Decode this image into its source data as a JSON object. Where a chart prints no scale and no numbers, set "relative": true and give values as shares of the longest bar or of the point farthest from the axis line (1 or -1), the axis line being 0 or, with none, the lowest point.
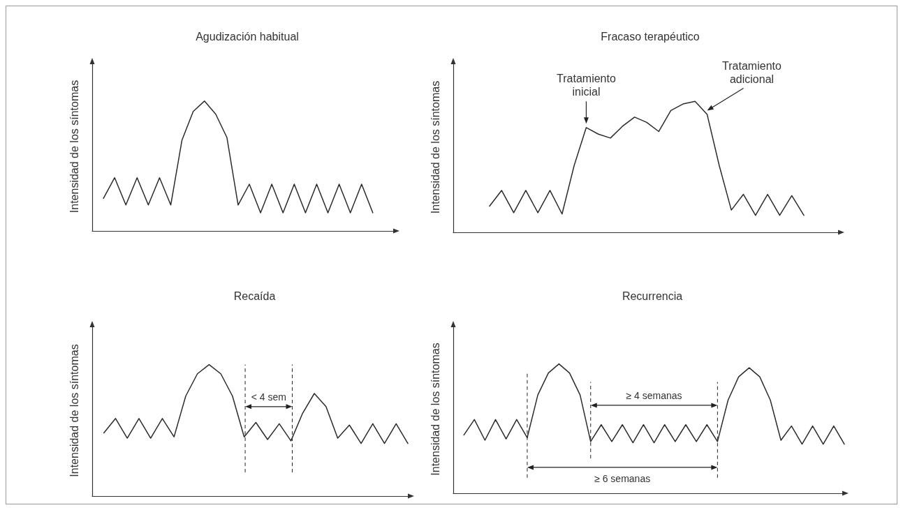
{
  "chart_data": [
    {
      "type": "line",
      "title": "Agudización habitual",
      "ylabel": "Intensidad de los síntomas",
      "relative": true,
      "marker": "none",
      "categories": [
        null,
        null,
        null,
        null,
        null,
        null,
        null,
        null,
        null,
        null,
        null,
        null,
        null,
        null,
        null,
        null,
        null,
        null,
        null,
        null,
        null,
        null,
        null,
        null,
        null,
        null,
        null,
        null
      ],
      "series": [
        {
          "color": "#2b2b2b",
          "values": [
            null,
            0.25,
            0.41,
            0.2,
            0.41,
            0.2,
            0.41,
            0.2,
            0.7,
            0.92,
            1,
            0.9,
            0.72,
            0.2,
            0.36,
            0.14,
            0.36,
            0.14,
            0.36,
            0.14,
            0.36,
            0.14,
            0.36,
            0.14,
            0.36,
            0.14,
            null,
            null
          ]
        }
      ]
    },
    {
      "type": "line",
      "title": "Fracaso terapéutico",
      "ylabel": "Intensidad de los síntomas",
      "relative": true,
      "marker": "none",
      "categories": [
        null,
        null,
        null,
        null,
        null,
        null,
        null,
        null,
        null,
        null,
        null,
        null,
        null,
        null,
        null,
        null,
        null,
        null,
        null,
        null,
        null,
        null,
        null,
        null,
        null,
        null,
        null,
        null,
        null,
        null,
        null,
        null,
        null
      ],
      "series": [
        {
          "color": "#2b2b2b",
          "values": [
            null,
            null,
            null,
            0.2,
            0.32,
            0.15,
            0.32,
            0.15,
            0.32,
            0.14,
            0.51,
            0.8,
            0.75,
            0.72,
            0.81,
            0.88,
            0.84,
            0.77,
            0.93,
            0.98,
            1,
            0.9,
            0.51,
            0.17,
            0.29,
            0.13,
            0.29,
            0.13,
            0.28,
            0.13,
            null,
            null,
            null
          ]
        }
      ],
      "annotations": [
        {
          "text": "Tratamiento inicial",
          "y": 0.8
        },
        "Tratamiento adicional"
      ]
    },
    {
      "type": "line",
      "title": "Recaída",
      "ylabel": "Intensidad de los síntomas",
      "relative": true,
      "marker": "none",
      "categories": [
        null,
        null,
        null,
        null,
        null,
        null,
        null,
        null,
        null,
        null,
        null,
        null,
        null,
        null,
        null,
        null,
        null,
        null,
        null,
        null,
        null,
        null,
        null,
        null,
        null,
        null,
        null,
        null
      ],
      "series": [
        {
          "color": "#2b2b2b",
          "values": [
            null,
            0.48,
            0.59,
            0.44,
            0.59,
            0.44,
            0.59,
            0.45,
            0.76,
            0.93,
            1,
            0.93,
            0.76,
            0.45,
            0.56,
            0.43,
            0.55,
            0.42,
            0.63,
            0.78,
            0.68,
            0.44,
            0.54,
            0.4,
            0.55,
            0.4,
            0.55,
            0.4
          ]
        }
      ],
      "annotations": [
        "< 4 sem"
      ]
    },
    {
      "type": "line",
      "title": "Recurrencia",
      "ylabel": "Intensidad de los síntomas",
      "relative": true,
      "marker": "none",
      "categories": [
        null,
        null,
        null,
        null,
        null,
        null,
        null,
        null,
        null,
        null,
        null,
        null,
        null,
        null,
        null,
        null,
        null,
        null,
        null,
        null,
        null,
        null,
        null,
        null,
        null,
        null,
        null,
        null,
        null,
        null,
        null,
        null,
        null,
        null,
        null,
        null,
        null,
        null
      ],
      "series": [
        {
          "color": "#2b2b2b",
          "values": [
            null,
            0.45,
            0.57,
            0.41,
            0.57,
            0.42,
            0.57,
            0.43,
            0.76,
            0.93,
            1,
            0.93,
            0.76,
            0.4,
            0.53,
            0.4,
            0.53,
            0.39,
            0.53,
            0.39,
            0.53,
            0.4,
            0.53,
            0.4,
            0.53,
            0.4,
            0.72,
            0.9,
            0.97,
            0.9,
            0.72,
            0.41,
            0.52,
            0.38,
            0.52,
            0.38,
            0.52,
            0.38
          ]
        }
      ],
      "annotations": [
        "≥ 4 semanas",
        "≥ 6 semanas"
      ]
    }
  ]
}
